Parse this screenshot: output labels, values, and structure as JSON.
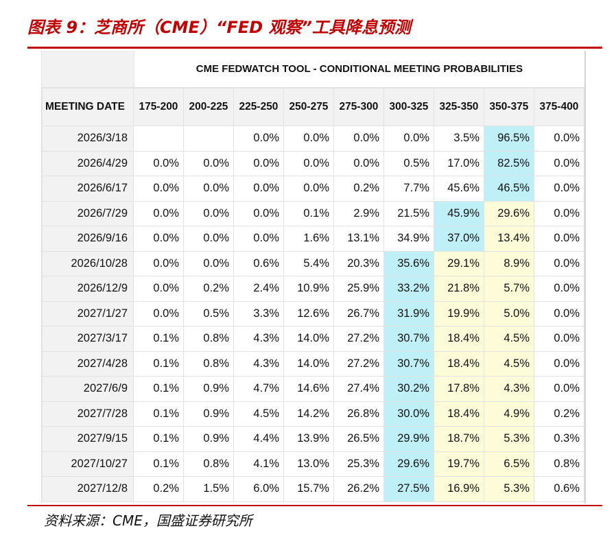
{
  "figure": {
    "title": "图表 9：芝商所（CME）“FED 观察”工具降息预测",
    "source": "资料来源：CME，国盛证券研究所"
  },
  "chart_data": {
    "type": "table",
    "title": "CME FEDWATCH TOOL - CONDITIONAL MEETING PROBABILITIES",
    "row_header": "MEETING DATE",
    "columns": [
      "175-200",
      "200-225",
      "225-250",
      "250-275",
      "275-300",
      "300-325",
      "325-350",
      "350-375",
      "375-400"
    ],
    "rows": [
      {
        "date": "2026/3/18",
        "values": [
          "",
          "",
          "0.0%",
          "0.0%",
          "0.0%",
          "0.0%",
          "3.5%",
          "96.5%",
          "0.0%"
        ],
        "highlight": {
          "7": "blue"
        }
      },
      {
        "date": "2026/4/29",
        "values": [
          "0.0%",
          "0.0%",
          "0.0%",
          "0.0%",
          "0.0%",
          "0.5%",
          "17.0%",
          "82.5%",
          "0.0%"
        ],
        "highlight": {
          "7": "blue"
        }
      },
      {
        "date": "2026/6/17",
        "values": [
          "0.0%",
          "0.0%",
          "0.0%",
          "0.0%",
          "0.2%",
          "7.7%",
          "45.6%",
          "46.5%",
          "0.0%"
        ],
        "highlight": {
          "7": "blue"
        }
      },
      {
        "date": "2026/7/29",
        "values": [
          "0.0%",
          "0.0%",
          "0.0%",
          "0.1%",
          "2.9%",
          "21.5%",
          "45.9%",
          "29.6%",
          "0.0%"
        ],
        "highlight": {
          "6": "blue",
          "7": "yellow"
        }
      },
      {
        "date": "2026/9/16",
        "values": [
          "0.0%",
          "0.0%",
          "0.0%",
          "1.6%",
          "13.1%",
          "34.9%",
          "37.0%",
          "13.4%",
          "0.0%"
        ],
        "highlight": {
          "6": "blue",
          "7": "yellow"
        }
      },
      {
        "date": "2026/10/28",
        "values": [
          "0.0%",
          "0.0%",
          "0.6%",
          "5.4%",
          "20.3%",
          "35.6%",
          "29.1%",
          "8.9%",
          "0.0%"
        ],
        "highlight": {
          "5": "blue",
          "6": "yellow",
          "7": "yellow"
        }
      },
      {
        "date": "2026/12/9",
        "values": [
          "0.0%",
          "0.2%",
          "2.4%",
          "10.9%",
          "25.9%",
          "33.2%",
          "21.8%",
          "5.7%",
          "0.0%"
        ],
        "highlight": {
          "5": "blue",
          "6": "yellow",
          "7": "yellow"
        }
      },
      {
        "date": "2027/1/27",
        "values": [
          "0.0%",
          "0.5%",
          "3.3%",
          "12.6%",
          "26.7%",
          "31.9%",
          "19.9%",
          "5.0%",
          "0.0%"
        ],
        "highlight": {
          "5": "blue",
          "6": "yellow",
          "7": "yellow"
        }
      },
      {
        "date": "2027/3/17",
        "values": [
          "0.1%",
          "0.8%",
          "4.3%",
          "14.0%",
          "27.2%",
          "30.7%",
          "18.4%",
          "4.5%",
          "0.0%"
        ],
        "highlight": {
          "5": "blue",
          "6": "yellow",
          "7": "yellow"
        }
      },
      {
        "date": "2027/4/28",
        "values": [
          "0.1%",
          "0.8%",
          "4.3%",
          "14.0%",
          "27.2%",
          "30.7%",
          "18.4%",
          "4.5%",
          "0.0%"
        ],
        "highlight": {
          "5": "blue",
          "6": "yellow",
          "7": "yellow"
        }
      },
      {
        "date": "2027/6/9",
        "values": [
          "0.1%",
          "0.9%",
          "4.7%",
          "14.6%",
          "27.4%",
          "30.2%",
          "17.8%",
          "4.3%",
          "0.0%"
        ],
        "highlight": {
          "5": "blue",
          "6": "yellow",
          "7": "yellow"
        }
      },
      {
        "date": "2027/7/28",
        "values": [
          "0.1%",
          "0.9%",
          "4.5%",
          "14.2%",
          "26.8%",
          "30.0%",
          "18.4%",
          "4.9%",
          "0.2%"
        ],
        "highlight": {
          "5": "blue",
          "6": "yellow",
          "7": "yellow"
        }
      },
      {
        "date": "2027/9/15",
        "values": [
          "0.1%",
          "0.9%",
          "4.4%",
          "13.9%",
          "26.5%",
          "29.9%",
          "18.7%",
          "5.3%",
          "0.3%"
        ],
        "highlight": {
          "5": "blue",
          "6": "yellow",
          "7": "yellow"
        }
      },
      {
        "date": "2027/10/27",
        "values": [
          "0.1%",
          "0.8%",
          "4.1%",
          "13.0%",
          "25.3%",
          "29.6%",
          "19.7%",
          "6.5%",
          "0.8%"
        ],
        "highlight": {
          "5": "blue",
          "6": "yellow",
          "7": "yellow"
        }
      },
      {
        "date": "2027/12/8",
        "values": [
          "0.2%",
          "1.5%",
          "6.0%",
          "15.7%",
          "26.2%",
          "27.5%",
          "16.9%",
          "5.3%",
          "0.6%"
        ],
        "highlight": {
          "5": "blue",
          "6": "yellow",
          "7": "yellow"
        }
      }
    ]
  },
  "colors": {
    "accent_red": "#c00000",
    "highlight_blue": "#bff0f8",
    "highlight_yellow": "#fcfcd9",
    "header_gray": "#f2f2f2"
  }
}
